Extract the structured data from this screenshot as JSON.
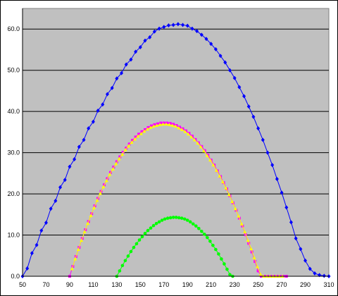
{
  "chart_data": {
    "type": "line",
    "title": "",
    "xlabel": "",
    "ylabel": "",
    "xlim": [
      50,
      310
    ],
    "ylim": [
      0,
      65
    ],
    "x_ticks": [
      "50",
      "70",
      "90",
      "110",
      "130",
      "150",
      "170",
      "190",
      "210",
      "230",
      "250",
      "270",
      "290",
      "310"
    ],
    "y_ticks": [
      "0.0",
      "10.0",
      "20.0",
      "30.0",
      "40.0",
      "50.0",
      "60.0"
    ],
    "y_tick_values": [
      0,
      10,
      20,
      30,
      40,
      50,
      60
    ],
    "grid": "horizontal",
    "legend": "none",
    "plot_background": "#c0c0c0",
    "series": [
      {
        "color": "#0000ff",
        "marker": "diamond",
        "x": [
          50,
          54,
          58,
          62,
          66,
          70,
          74,
          78,
          82,
          86,
          90,
          94,
          98,
          102,
          106,
          110,
          114,
          118,
          122,
          126,
          130,
          134,
          138,
          142,
          146,
          150,
          154,
          158,
          162,
          166,
          170,
          174,
          178,
          182,
          186,
          190,
          194,
          198,
          202,
          206,
          210,
          214,
          218,
          222,
          226,
          230,
          234,
          238,
          242,
          246,
          250,
          254,
          258,
          262,
          266,
          270,
          274,
          278,
          282,
          286,
          290,
          294,
          298,
          302,
          306,
          310
        ],
        "y": [
          0.0,
          1.9,
          5.6,
          7.6,
          11.1,
          13.0,
          16.4,
          18.3,
          21.6,
          23.4,
          26.6,
          28.4,
          31.4,
          33.1,
          35.9,
          37.5,
          40.2,
          41.7,
          44.2,
          45.7,
          48.0,
          49.3,
          51.4,
          52.6,
          54.5,
          55.6,
          57.2,
          58.0,
          59.4,
          60.1,
          60.5,
          60.9,
          61.0,
          61.2,
          61.0,
          60.8,
          60.1,
          59.5,
          58.6,
          57.6,
          56.4,
          55.1,
          53.5,
          51.9,
          50.0,
          48.1,
          45.9,
          43.7,
          41.2,
          38.7,
          35.9,
          33.1,
          30.0,
          27.0,
          23.6,
          20.3,
          16.7,
          13.1,
          9.2,
          6.6,
          3.8,
          1.8,
          0.7,
          0.3,
          0.1,
          0.0
        ]
      },
      {
        "color": "#ff00ff",
        "marker": "square",
        "x": [
          90,
          92.67,
          95.33,
          98,
          100.67,
          103.33,
          106,
          108.67,
          111.33,
          114,
          116.67,
          119.33,
          122,
          124.67,
          127.33,
          130,
          132.67,
          135.33,
          138,
          140.67,
          143.33,
          146,
          148.67,
          151.33,
          154,
          156.67,
          159.33,
          162,
          164.67,
          167.33,
          170,
          172.67,
          175.33,
          178,
          180.67,
          183.33,
          186,
          188.67,
          191.33,
          194,
          196.67,
          199.33,
          202,
          204.67,
          207.33,
          210,
          212.67,
          215.33,
          218,
          220.67,
          223.33,
          226,
          228.67,
          231.33,
          234,
          236.67,
          239.33,
          242,
          244.67,
          247.33,
          250,
          252.67,
          255.33,
          258,
          260.67,
          263.33,
          266,
          268.67,
          271.33,
          274
        ],
        "y": [
          0.0,
          2.4,
          4.8,
          7.0,
          9.2,
          11.3,
          13.3,
          15.2,
          17.1,
          18.9,
          20.6,
          22.2,
          23.7,
          25.2,
          26.5,
          27.8,
          29.0,
          30.1,
          31.1,
          32.1,
          33.0,
          33.8,
          34.5,
          35.1,
          35.6,
          36.1,
          36.5,
          36.8,
          37.0,
          37.2,
          37.2,
          37.2,
          37.1,
          36.9,
          36.6,
          36.2,
          35.8,
          35.3,
          34.7,
          34.0,
          33.2,
          32.4,
          31.5,
          30.5,
          29.4,
          28.2,
          27.0,
          25.6,
          24.2,
          22.7,
          21.2,
          19.5,
          17.8,
          16.0,
          14.1,
          12.2,
          10.1,
          8.0,
          5.9,
          3.6,
          1.3,
          0.0,
          0.0,
          0.0,
          0.0,
          0.0,
          0.0,
          0.0,
          0.0,
          0.0
        ]
      },
      {
        "color": "#ffff00",
        "marker": "triangle",
        "x": [
          92,
          94.67,
          97.33,
          100,
          102.67,
          105.33,
          108,
          110.67,
          113.33,
          116,
          118.67,
          121.33,
          124,
          126.67,
          129.33,
          132,
          134.67,
          137.33,
          140,
          142.67,
          145.33,
          148,
          150.67,
          153.33,
          156,
          158.67,
          161.33,
          164,
          166.67,
          169.33,
          172,
          174.67,
          177.33,
          180,
          182.67,
          185.33,
          188,
          190.67,
          193.33,
          196,
          198.67,
          201.33,
          204,
          206.67,
          209.33,
          212,
          214.67,
          217.33,
          220,
          222.67,
          225.33,
          228,
          230.67,
          233.33,
          236,
          238.67,
          241.33,
          244,
          246.67,
          249.33,
          252,
          254.67,
          257.33,
          260,
          262.67,
          265.33,
          268,
          270.67
        ],
        "y": [
          1.8,
          4.2,
          6.5,
          8.7,
          10.8,
          12.8,
          14.7,
          16.6,
          18.4,
          20.1,
          21.7,
          23.2,
          24.7,
          26.0,
          27.3,
          28.5,
          29.6,
          30.7,
          31.6,
          32.5,
          33.3,
          34.0,
          34.6,
          35.2,
          35.7,
          36.1,
          36.4,
          36.6,
          36.8,
          36.9,
          36.9,
          36.8,
          36.6,
          36.4,
          36.0,
          35.6,
          35.1,
          34.5,
          33.8,
          33.1,
          32.3,
          31.4,
          30.4,
          29.3,
          28.2,
          27.0,
          25.7,
          24.3,
          22.9,
          21.4,
          19.8,
          18.1,
          16.4,
          14.6,
          12.7,
          10.8,
          8.7,
          6.7,
          4.5,
          2.3,
          0.5,
          0.0,
          0.0,
          0.0,
          0.0,
          0.0,
          0.0,
          0.0
        ]
      },
      {
        "color": "#00ff00",
        "marker": "circle",
        "x": [
          130,
          132.4,
          134.8,
          137.2,
          139.6,
          142,
          144.4,
          146.8,
          149.2,
          151.6,
          154,
          156.4,
          158.8,
          161.2,
          163.6,
          166,
          168.4,
          170.8,
          173.2,
          175.6,
          178,
          180.4,
          182.8,
          185.2,
          187.6,
          190,
          192.4,
          194.8,
          197.2,
          199.6,
          202,
          204.4,
          206.8,
          209.2,
          211.6,
          214,
          216.4,
          218.8,
          221.2,
          223.6,
          226,
          228.4
        ],
        "y": [
          0.0,
          1.3,
          2.6,
          3.8,
          4.9,
          6.0,
          7.0,
          7.9,
          8.8,
          9.6,
          10.4,
          11.1,
          11.7,
          12.3,
          12.8,
          13.2,
          13.6,
          13.9,
          14.1,
          14.2,
          14.3,
          14.3,
          14.2,
          14.1,
          13.9,
          13.6,
          13.2,
          12.7,
          12.2,
          11.6,
          10.9,
          10.2,
          9.4,
          8.5,
          7.5,
          6.5,
          5.4,
          4.2,
          3.0,
          1.7,
          0.4,
          0.0
        ]
      }
    ]
  }
}
